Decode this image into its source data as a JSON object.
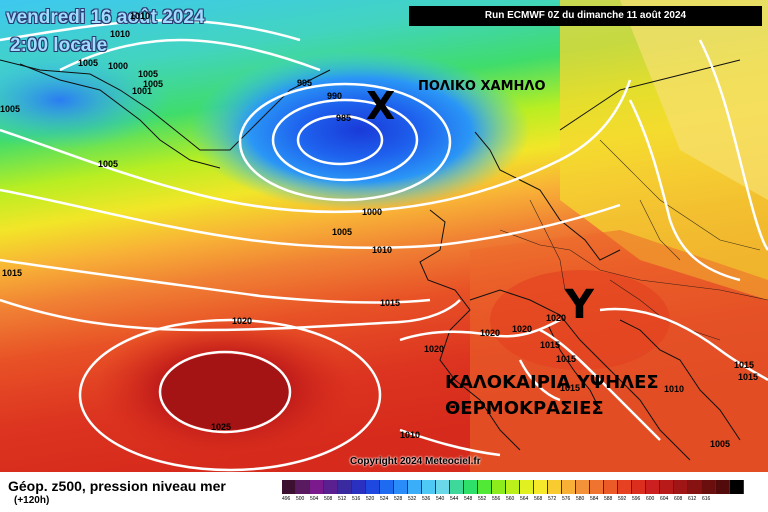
{
  "header": {
    "date": "vendredi 16 août 2024",
    "time": "2:00 locale",
    "run": "Run ECMWF 0Z du dimanche 11 août 2024"
  },
  "annotations": {
    "low_symbol": "X",
    "low_label": "ΠΟΛΙΚΟ ΧΑΜΗΛΟ",
    "high_symbol": "Y",
    "weather_line1": "ΚΑΛΟΚΑΙΡΙΑ ΥΨΗΛΕΣ",
    "weather_line2": "ΘΕΡΜΟΚΡΑΣΙΕΣ"
  },
  "isobar_labels": [
    {
      "id": "p1",
      "text": "1010"
    },
    {
      "id": "p2",
      "text": "1010"
    },
    {
      "id": "p3",
      "text": "1005"
    },
    {
      "id": "p4",
      "text": "1000"
    },
    {
      "id": "p5",
      "text": "1005"
    },
    {
      "id": "p6",
      "text": "1001"
    },
    {
      "id": "p7",
      "text": "1005"
    },
    {
      "id": "p8",
      "text": "995"
    },
    {
      "id": "p9",
      "text": "990"
    },
    {
      "id": "p10",
      "text": "985"
    },
    {
      "id": "p11",
      "text": "1005"
    },
    {
      "id": "p12",
      "text": "1000"
    },
    {
      "id": "p13",
      "text": "1005"
    },
    {
      "id": "p14",
      "text": "1010"
    },
    {
      "id": "p15",
      "text": "1015"
    },
    {
      "id": "p16",
      "text": "1015"
    },
    {
      "id": "p17",
      "text": "1020"
    },
    {
      "id": "p18",
      "text": "1020"
    },
    {
      "id": "p19",
      "text": "1020"
    },
    {
      "id": "p20",
      "text": "1020"
    },
    {
      "id": "p21",
      "text": "1020"
    },
    {
      "id": "p22",
      "text": "1015"
    },
    {
      "id": "p23",
      "text": "1015"
    },
    {
      "id": "p24",
      "text": "1025"
    },
    {
      "id": "p25",
      "text": "1010"
    },
    {
      "id": "p26",
      "text": "1015"
    },
    {
      "id": "p27",
      "text": "1010"
    },
    {
      "id": "p28",
      "text": "1015"
    },
    {
      "id": "p29",
      "text": "1015"
    },
    {
      "id": "p30",
      "text": "1005"
    },
    {
      "id": "p31",
      "text": "1005"
    }
  ],
  "copyright": "Copyright 2024 Meteociel.fr",
  "legend": {
    "title": "Géop. z500, pression niveau mer",
    "subtitle": "(+120h)",
    "colors": [
      "#3b1030",
      "#5a1a60",
      "#7a1a8c",
      "#5a2090",
      "#3a2aa0",
      "#2a30c0",
      "#1e48e0",
      "#1e6af0",
      "#2a8cf8",
      "#3aaef8",
      "#4ec8f4",
      "#6ad8e8",
      "#3ed89a",
      "#2ee06a",
      "#52e836",
      "#8cec1c",
      "#bcf01a",
      "#e0f020",
      "#f6e82a",
      "#f8cc30",
      "#f8b036",
      "#f4923a",
      "#f07430",
      "#ec5a28",
      "#e64222",
      "#dc2e1e",
      "#cc2020",
      "#b81a1a",
      "#a01616",
      "#861212",
      "#6a0e0e",
      "#520a0a",
      "#000000"
    ],
    "ticks": [
      "496",
      "500",
      "504",
      "508",
      "512",
      "516",
      "520",
      "524",
      "528",
      "532",
      "536",
      "540",
      "544",
      "548",
      "552",
      "556",
      "560",
      "564",
      "568",
      "572",
      "576",
      "580",
      "584",
      "588",
      "592",
      "596",
      "600",
      "604",
      "608",
      "612",
      "616"
    ]
  }
}
